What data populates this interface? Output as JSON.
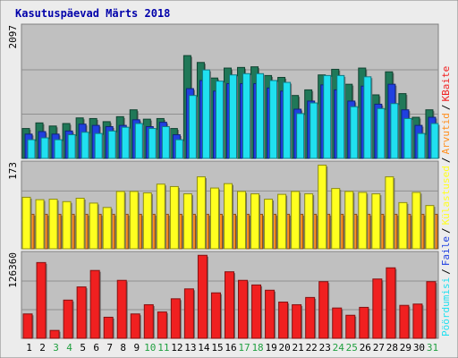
{
  "chart_data": {
    "type": "bar",
    "title": "Kasutuspäevad Märts 2018",
    "colors": {
      "background": "#ececec",
      "panel": "#c0c0c0",
      "title": "#0000aa",
      "kulastajad": "#207858",
      "failid": "#2040e0",
      "poordumisi": "#20e0f0",
      "arvutid": "#ff9020",
      "kulastused": "#ffff20",
      "kbaite": "#f02020",
      "weekend": "#20a040"
    },
    "categories": [
      "1",
      "2",
      "3",
      "4",
      "5",
      "6",
      "7",
      "8",
      "9",
      "10",
      "11",
      "12",
      "13",
      "14",
      "15",
      "16",
      "17",
      "18",
      "19",
      "20",
      "21",
      "22",
      "23",
      "24",
      "25",
      "26",
      "27",
      "28",
      "29",
      "30",
      "31"
    ],
    "weekend_days": [
      "3",
      "4",
      "10",
      "11",
      "17",
      "18",
      "24",
      "25",
      "31"
    ],
    "panels": [
      {
        "id": "top",
        "max_label": "2097",
        "ylim": [
          0,
          2097
        ],
        "series": [
          {
            "key": "kulastajad",
            "values": [
              480,
              570,
              520,
              560,
              650,
              640,
              590,
              670,
              780,
              630,
              640,
              480,
              1650,
              1540,
              1290,
              1450,
              1460,
              1470,
              1330,
              1300,
              1010,
              1100,
              1340,
              1430,
              1190,
              1450,
              1020,
              1390,
              1040,
              660,
              780
            ]
          },
          {
            "key": "failid",
            "values": [
              390,
              430,
              390,
              440,
              550,
              530,
              510,
              530,
              620,
              510,
              580,
              380,
              1120,
              1250,
              1080,
              1200,
              1200,
              1200,
              1130,
              1080,
              790,
              920,
              1180,
              1100,
              920,
              1160,
              870,
              1190,
              780,
              530,
              660
            ]
          },
          {
            "key": "poordumisi",
            "values": [
              300,
              330,
              300,
              380,
              420,
              400,
              440,
              500,
              560,
              480,
              510,
              300,
              1010,
              1420,
              1240,
              1340,
              1360,
              1360,
              1250,
              1220,
              720,
              890,
              1330,
              1330,
              830,
              1310,
              800,
              880,
              640,
              400,
              560
            ]
          }
        ],
        "labels": [
          "Külastajad",
          "Faile",
          "Pöördumisi"
        ]
      },
      {
        "id": "middle",
        "max_label": "173",
        "ylim": [
          0,
          173
        ],
        "series": [
          {
            "key": "arvutid",
            "values": [
              71,
              71,
              71,
              71,
              71,
              71,
              71,
              71,
              71,
              71,
              71,
              71,
              71,
              71,
              71,
              71,
              71,
              71,
              71,
              71,
              71,
              71,
              71,
              71,
              71,
              71,
              71,
              71,
              71,
              71,
              71
            ]
          },
          {
            "key": "kulastused",
            "values": [
              106,
              101,
              102,
              97,
              104,
              94,
              85,
              118,
              118,
              115,
              133,
              128,
              113,
              148,
              125,
              134,
              118,
              113,
              102,
              112,
              118,
              113,
              172,
              124,
              118,
              116,
              113,
              148,
              95,
              116,
              89
            ]
          }
        ],
        "labels": [
          "Arvutid",
          "Külastusi"
        ]
      },
      {
        "id": "bottom",
        "max_label": "126360",
        "ylim": [
          0,
          126360
        ],
        "series": [
          {
            "key": "kbaite",
            "values": [
              37000,
              115000,
              12000,
              58000,
              78000,
              103000,
              32000,
              88000,
              37000,
              51000,
              40000,
              60000,
              75000,
              126000,
              69000,
              101000,
              88000,
              81000,
              73000,
              55000,
              51000,
              62000,
              86000,
              46000,
              35000,
              47000,
              90000,
              107000,
              50000,
              52000,
              86000
            ]
          }
        ],
        "labels": [
          "KBaite"
        ]
      }
    ],
    "right_labels": [
      {
        "text": "Pöördumisi",
        "color": "#20e0f0"
      },
      {
        "text": "Faile",
        "color": "#2040e0"
      },
      {
        "text": "Külastused",
        "color": "#ffff20"
      },
      {
        "text": "Arvutid",
        "color": "#ff9020"
      },
      {
        "text": "KBaite",
        "color": "#f02020"
      }
    ]
  }
}
